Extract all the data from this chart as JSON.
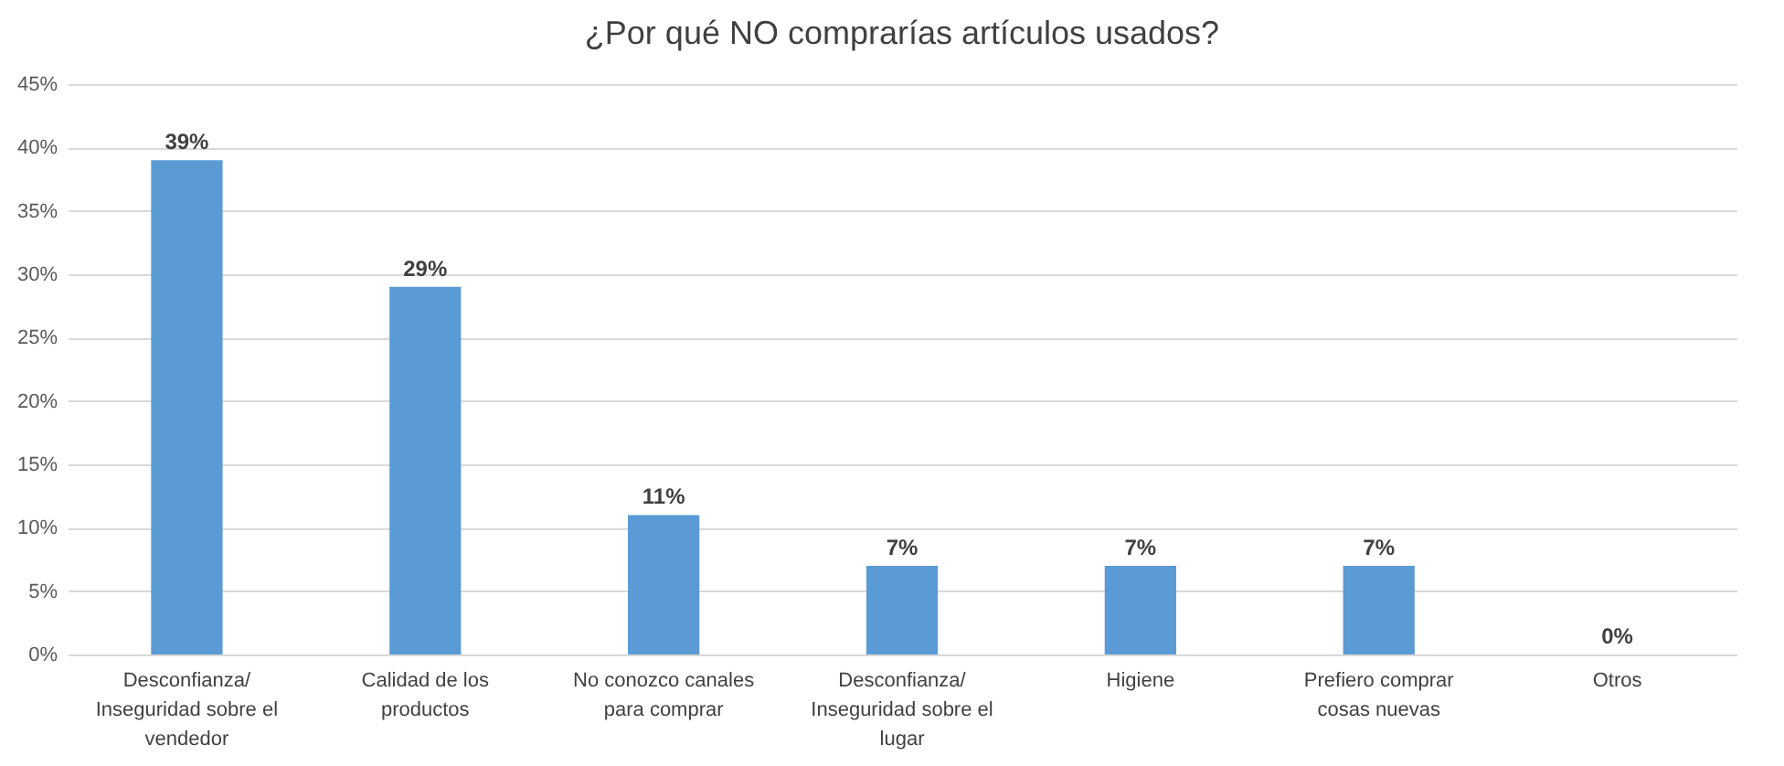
{
  "chart_data": {
    "type": "bar",
    "title": "¿Por qué NO comprarías artículos usados?",
    "categories": [
      "Desconfianza/ Inseguridad sobre el vendedor",
      "Calidad de los productos",
      "No conozco canales para comprar",
      "Desconfianza/ Inseguridad sobre el lugar",
      "Higiene",
      "Prefiero comprar cosas nuevas",
      "Otros"
    ],
    "values": [
      39,
      29,
      11,
      7,
      7,
      7,
      0
    ],
    "value_labels": [
      "39%",
      "29%",
      "11%",
      "7%",
      "7%",
      "7%",
      "0%"
    ],
    "color": "#5b9bd5",
    "ylim": [
      0,
      45
    ],
    "yticks": [
      {
        "value": 0,
        "label": "0%"
      },
      {
        "value": 5,
        "label": "5%"
      },
      {
        "value": 10,
        "label": "10%"
      },
      {
        "value": 15,
        "label": "15%"
      },
      {
        "value": 20,
        "label": "20%"
      },
      {
        "value": 25,
        "label": "25%"
      },
      {
        "value": 30,
        "label": "30%"
      },
      {
        "value": 35,
        "label": "35%"
      },
      {
        "value": 40,
        "label": "40%"
      },
      {
        "value": 45,
        "label": "45%"
      }
    ],
    "grid": "y"
  }
}
